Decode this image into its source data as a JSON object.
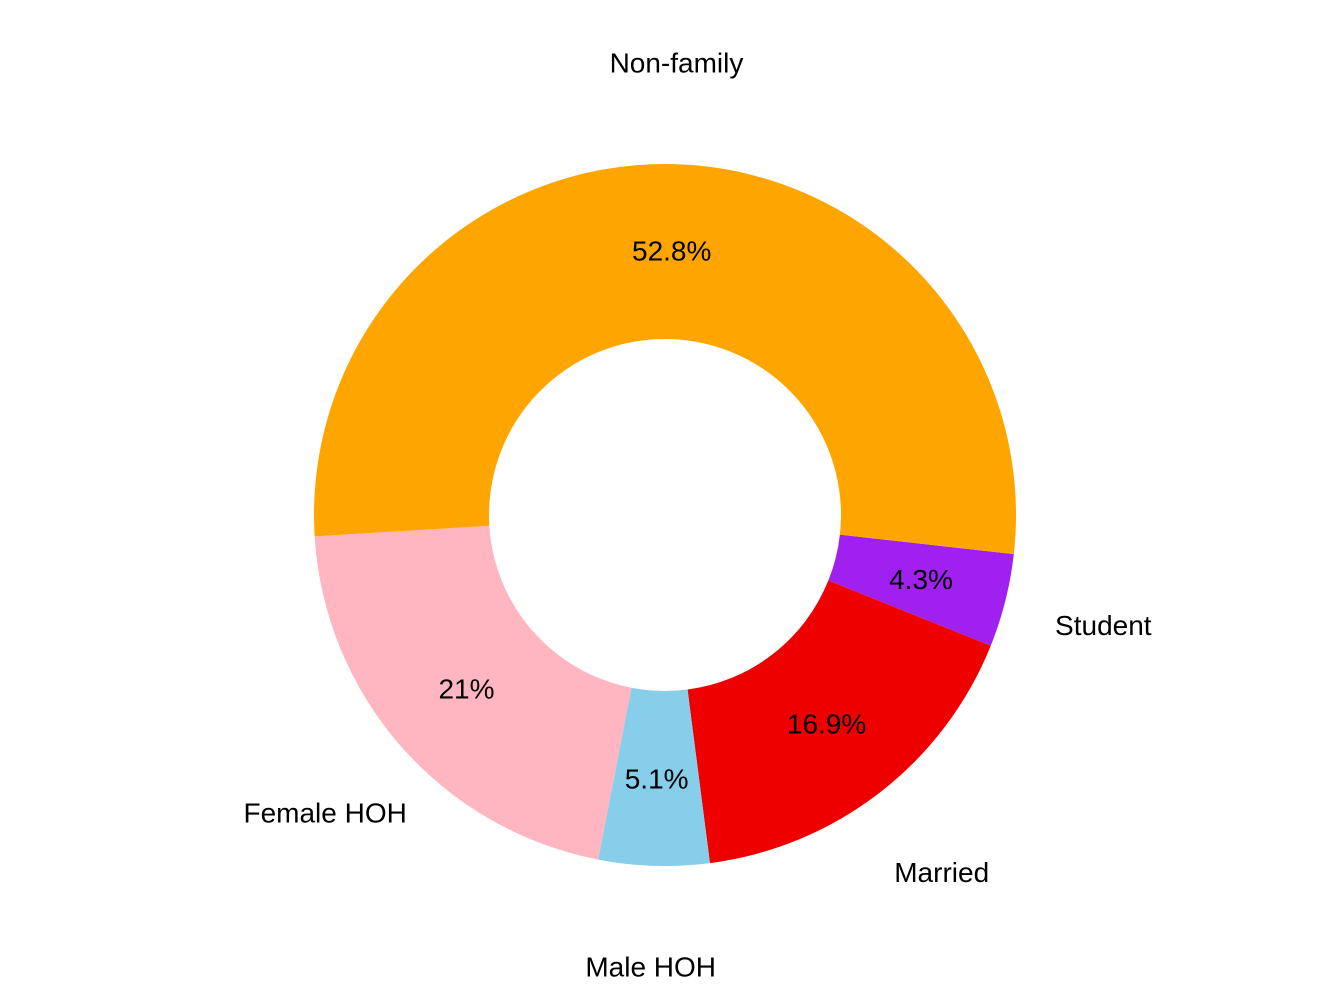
{
  "chart_data": {
    "type": "pie",
    "variant": "donut",
    "slices": [
      {
        "label": "Student",
        "value": 4.3,
        "value_label": "4.3%",
        "color": "#A020F0"
      },
      {
        "label": "Married",
        "value": 16.9,
        "value_label": "16.9%",
        "color": "#EE0000"
      },
      {
        "label": "Male HOH",
        "value": 5.1,
        "value_label": "5.1%",
        "color": "#87CEEB"
      },
      {
        "label": "Female HOH",
        "value": 21,
        "value_label": "21%",
        "color": "#FFB6C1"
      },
      {
        "label": "Non-family",
        "value": 52.8,
        "value_label": "52.8%",
        "color": "#FFA500"
      }
    ],
    "direction": "clockwise"
  }
}
